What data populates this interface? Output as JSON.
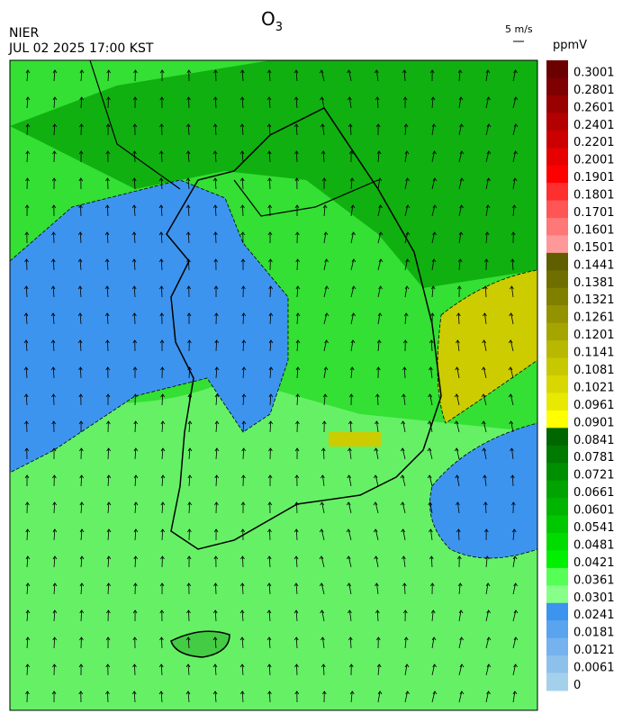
{
  "header": {
    "title": {
      "main": "O",
      "subscript": "3"
    },
    "agency": "NIER",
    "datetime": "JUL 02 2025 17:00 KST"
  },
  "vector_legend": {
    "label": "5 m/s"
  },
  "colorbar": {
    "unit": "ppmV",
    "labels": [
      "0.3001",
      "0.2801",
      "0.2601",
      "0.2401",
      "0.2201",
      "0.2001",
      "0.1901",
      "0.1801",
      "0.1701",
      "0.1601",
      "0.1501",
      "0.1441",
      "0.1381",
      "0.1321",
      "0.1261",
      "0.1201",
      "0.1141",
      "0.1081",
      "0.1021",
      "0.0961",
      "0.0901",
      "0.0841",
      "0.0781",
      "0.0721",
      "0.0661",
      "0.0601",
      "0.0541",
      "0.0481",
      "0.0421",
      "0.0361",
      "0.0301",
      "0.0241",
      "0.0181",
      "0.0121",
      "0.0061",
      "0"
    ],
    "colors": [
      "#6b0000",
      "#7f0000",
      "#990000",
      "#b30000",
      "#cc0000",
      "#e60000",
      "#ff0000",
      "#ff2f2f",
      "#ff5555",
      "#ff7777",
      "#ff9999",
      "#5f5f00",
      "#6f6f00",
      "#808000",
      "#939300",
      "#a5a500",
      "#b8b800",
      "#c8c800",
      "#d8d800",
      "#e8e800",
      "#ffff00",
      "#006600",
      "#007a00",
      "#008f00",
      "#00a300",
      "#00b400",
      "#00c800",
      "#00dc00",
      "#00f000",
      "#55ff55",
      "#88ff88",
      "#3d94ee",
      "#5aa3ee",
      "#75b2ee",
      "#8ec0ec",
      "#a5d0ec"
    ]
  }
}
